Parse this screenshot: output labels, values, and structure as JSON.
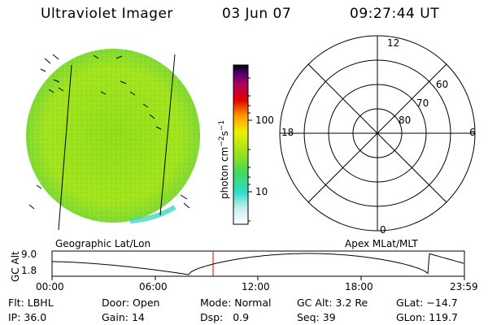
{
  "header": {
    "instrument": "Ultraviolet Imager",
    "date": "03 Jun 07",
    "time": "09:27:44 UT"
  },
  "image_panel": {
    "label": "Geographic Lat/Lon"
  },
  "colorbar": {
    "unit_main": "photon cm",
    "unit_exp1": "−2",
    "unit_mid": "s",
    "unit_exp2": "−1",
    "ticks": [
      "100",
      "10"
    ]
  },
  "polar_plot": {
    "label": "Apex  MLat/MLT",
    "mlt_labels": {
      "top": "12",
      "left": "18",
      "right": "6",
      "bottom": "0"
    },
    "lat_labels": [
      "60",
      "70",
      "80"
    ]
  },
  "altitude_plot": {
    "ylabel": "GC Alt",
    "yticks": [
      "9.0",
      "1.8"
    ],
    "xticks": [
      "00:00",
      "06:00",
      "12:00",
      "18:00",
      "23:59"
    ]
  },
  "info": {
    "filter_label": "Flt:",
    "filter_value": "LBHL",
    "ip_label": "IP:",
    "ip_value": "36.0",
    "door_label": "Door:",
    "door_value": "Open",
    "gain_label": "Gain:",
    "gain_value": "14",
    "mode_label": "Mode:",
    "mode_value": "Normal",
    "dsp_label": "Dsp:",
    "dsp_value": "0.9",
    "gcalt_label": "GC Alt:",
    "gcalt_value": "3.2 Re",
    "seq_label": "Seq:",
    "seq_value": "39",
    "glat_label": "GLat:",
    "glat_value": "−14.7",
    "glon_label": "GLon:",
    "glon_value": "119.7"
  },
  "colors": {
    "earth_fill": "#9be21a",
    "colorbar": [
      "#ffffff",
      "#c8f0f0",
      "#30e0c8",
      "#9be21a",
      "#f0f000",
      "#ff9a00",
      "#e00000",
      "#b00060",
      "#5a0070",
      "#000000"
    ],
    "current_time_marker": "#d00000"
  }
}
